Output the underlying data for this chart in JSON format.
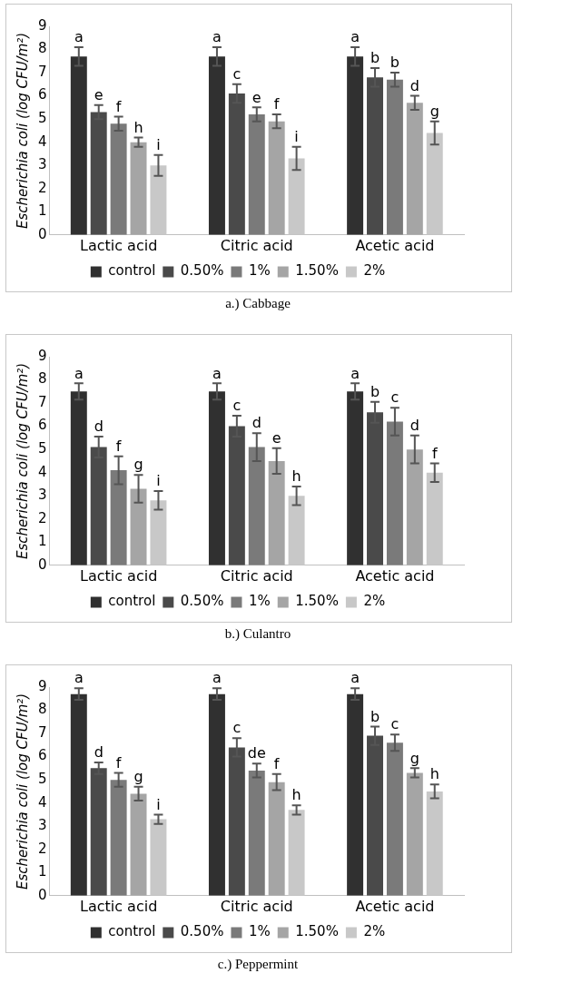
{
  "chart_data": [
    {
      "type": "bar",
      "ylabel": "Escherichia coli (log CFU/m²)",
      "categories": [
        "Lactic acid",
        "Citric acid",
        "Acetic acid"
      ],
      "ylim": [
        0,
        9
      ],
      "yticks": [
        0,
        1,
        2,
        3,
        4,
        5,
        6,
        7,
        8,
        9
      ],
      "grid": false,
      "legend": "bottom",
      "annotations": [
        "a.) Cabbage"
      ],
      "series": [
        {
          "name": "control",
          "color": "#303030",
          "values": [
            7.7,
            7.7,
            7.7
          ],
          "errors": [
            0.4,
            0.4,
            0.4
          ],
          "value_labels": [
            "a",
            "a",
            "a"
          ]
        },
        {
          "name": "0.50%",
          "color": "#4a4a4a",
          "values": [
            5.3,
            6.1,
            6.8
          ],
          "errors": [
            0.3,
            0.4,
            0.4
          ],
          "value_labels": [
            "e",
            "c",
            "b"
          ]
        },
        {
          "name": "1%",
          "color": "#7a7a7a",
          "values": [
            4.8,
            5.2,
            6.7
          ],
          "errors": [
            0.3,
            0.3,
            0.3
          ],
          "value_labels": [
            "f",
            "e",
            "b"
          ]
        },
        {
          "name": "1.50%",
          "color": "#a5a5a5",
          "values": [
            4.0,
            4.9,
            5.7
          ],
          "errors": [
            0.2,
            0.3,
            0.3
          ],
          "value_labels": [
            "h",
            "f",
            "d"
          ]
        },
        {
          "name": "2%",
          "color": "#c8c8c8",
          "values": [
            3.0,
            3.3,
            4.4
          ],
          "errors": [
            0.45,
            0.5,
            0.5
          ],
          "value_labels": [
            "i",
            "i",
            "g"
          ]
        }
      ]
    },
    {
      "type": "bar",
      "ylabel": "Escherichia coli (log CFU/m²)",
      "categories": [
        "Lactic acid",
        "Citric acid",
        "Acetic acid"
      ],
      "ylim": [
        0,
        9
      ],
      "yticks": [
        0,
        1,
        2,
        3,
        4,
        5,
        6,
        7,
        8,
        9
      ],
      "grid": false,
      "legend": "bottom",
      "annotations": [
        "b.) Culantro"
      ],
      "series": [
        {
          "name": "control",
          "color": "#303030",
          "values": [
            7.5,
            7.5,
            7.5
          ],
          "errors": [
            0.35,
            0.35,
            0.35
          ],
          "value_labels": [
            "a",
            "a",
            "a"
          ]
        },
        {
          "name": "0.50%",
          "color": "#4a4a4a",
          "values": [
            5.1,
            6.0,
            6.6
          ],
          "errors": [
            0.45,
            0.45,
            0.45
          ],
          "value_labels": [
            "d",
            "c",
            "b"
          ]
        },
        {
          "name": "1%",
          "color": "#7a7a7a",
          "values": [
            4.1,
            5.1,
            6.2
          ],
          "errors": [
            0.6,
            0.6,
            0.6
          ],
          "value_labels": [
            "f",
            "d",
            "c"
          ]
        },
        {
          "name": "1.50%",
          "color": "#a5a5a5",
          "values": [
            3.3,
            4.5,
            5.0
          ],
          "errors": [
            0.6,
            0.55,
            0.6
          ],
          "value_labels": [
            "g",
            "e",
            "d"
          ]
        },
        {
          "name": "2%",
          "color": "#c8c8c8",
          "values": [
            2.8,
            3.0,
            4.0
          ],
          "errors": [
            0.4,
            0.4,
            0.4
          ],
          "value_labels": [
            "i",
            "h",
            "f"
          ]
        }
      ]
    },
    {
      "type": "bar",
      "ylabel": "Escherichia coli (log CFU/m²)",
      "categories": [
        "Lactic acid",
        "Citric acid",
        "Acetic acid"
      ],
      "ylim": [
        0,
        9
      ],
      "yticks": [
        0,
        1,
        2,
        3,
        4,
        5,
        6,
        7,
        8,
        9
      ],
      "grid": false,
      "legend": "bottom",
      "annotations": [
        "c.) Peppermint"
      ],
      "series": [
        {
          "name": "control",
          "color": "#303030",
          "values": [
            8.7,
            8.7,
            8.7
          ],
          "errors": [
            0.25,
            0.25,
            0.25
          ],
          "value_labels": [
            "a",
            "a",
            "a"
          ]
        },
        {
          "name": "0.50%",
          "color": "#4a4a4a",
          "values": [
            5.5,
            6.4,
            6.9
          ],
          "errors": [
            0.25,
            0.4,
            0.4
          ],
          "value_labels": [
            "d",
            "c",
            "b"
          ]
        },
        {
          "name": "1%",
          "color": "#7a7a7a",
          "values": [
            5.0,
            5.4,
            6.6
          ],
          "errors": [
            0.3,
            0.3,
            0.35
          ],
          "value_labels": [
            "f",
            "de",
            "c"
          ]
        },
        {
          "name": "1.50%",
          "color": "#a5a5a5",
          "values": [
            4.4,
            4.9,
            5.3
          ],
          "errors": [
            0.3,
            0.35,
            0.2
          ],
          "value_labels": [
            "g",
            "f",
            "g"
          ]
        },
        {
          "name": "2%",
          "color": "#c8c8c8",
          "values": [
            3.3,
            3.7,
            4.5
          ],
          "errors": [
            0.2,
            0.2,
            0.3
          ],
          "value_labels": [
            "i",
            "h",
            "h"
          ]
        }
      ]
    }
  ]
}
